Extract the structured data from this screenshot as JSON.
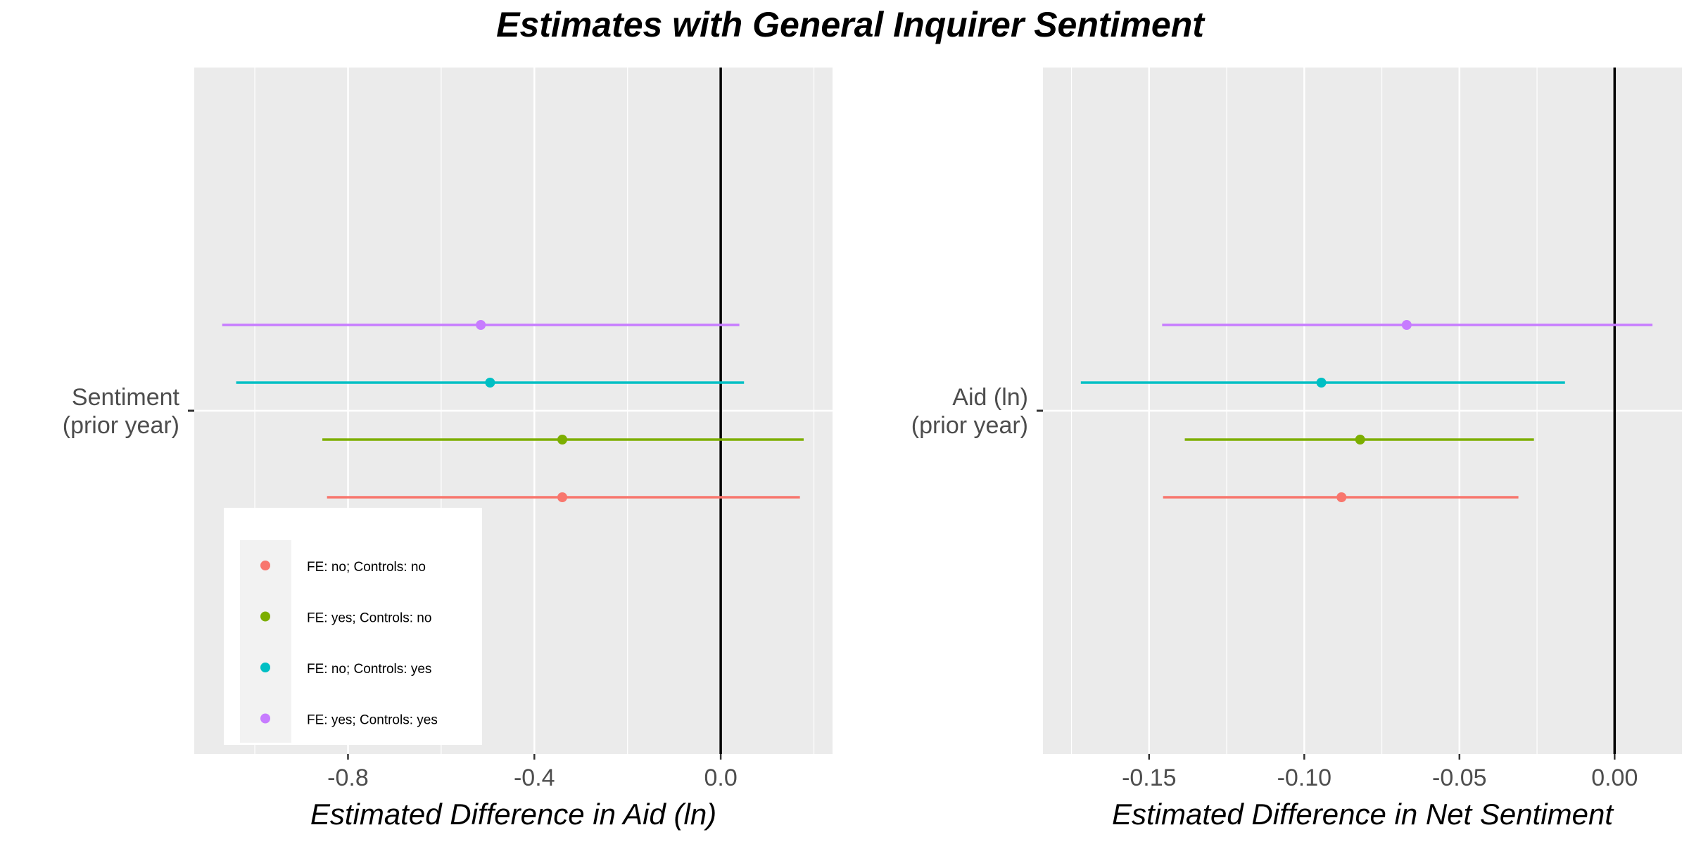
{
  "title": "Estimates with General Inquirer Sentiment",
  "colors": {
    "panel_bg": "#EBEBEB",
    "grid": "#FFFFFF",
    "zero_line": "#000000",
    "series": [
      "#F8766D",
      "#7CAE00",
      "#00BFC4",
      "#C77CFF"
    ]
  },
  "chart_data": [
    {
      "type": "scatter",
      "subtype": "coefficient-plot-with-intervals",
      "y_category": "Sentiment\n(prior year)",
      "xlabel": "Estimated Difference in Aid (ln)",
      "xlim": [
        -1.13,
        0.24
      ],
      "xticks": [
        -0.8,
        -0.4,
        0.0
      ],
      "xtick_labels": [
        "-0.8",
        "-0.4",
        "0.0"
      ],
      "x_grid_major": [
        -0.8,
        -0.4,
        0.0
      ],
      "x_grid_minor": [
        -1.0,
        -0.6,
        -0.2,
        0.2
      ],
      "zero_line": 0,
      "grid": true,
      "legend_position": "bottom-left",
      "series": [
        {
          "name": "FE: no; Controls: no",
          "estimate": -0.34,
          "lower": -0.845,
          "upper": 0.17
        },
        {
          "name": "FE: yes; Controls: no",
          "estimate": -0.34,
          "lower": -0.855,
          "upper": 0.178
        },
        {
          "name": "FE: no; Controls: yes",
          "estimate": -0.495,
          "lower": -1.04,
          "upper": 0.05
        },
        {
          "name": "FE: yes; Controls: yes",
          "estimate": -0.515,
          "lower": -1.07,
          "upper": 0.04
        }
      ]
    },
    {
      "type": "scatter",
      "subtype": "coefficient-plot-with-intervals",
      "y_category": "Aid (ln)\n(prior year)",
      "xlabel": "Estimated Difference in Net Sentiment",
      "xlim": [
        -0.1842,
        0.0217
      ],
      "xticks": [
        -0.15,
        -0.1,
        -0.05,
        0.0
      ],
      "xtick_labels": [
        "-0.15",
        "-0.10",
        "-0.05",
        "0.00"
      ],
      "x_grid_major": [
        -0.15,
        -0.1,
        -0.05,
        0.0
      ],
      "x_grid_minor": [
        -0.175,
        -0.125,
        -0.075,
        -0.025
      ],
      "zero_line": 0,
      "grid": true,
      "series": [
        {
          "name": "FE: no; Controls: no",
          "estimate": -0.088,
          "lower": -0.1455,
          "upper": -0.031
        },
        {
          "name": "FE: yes; Controls: no",
          "estimate": -0.082,
          "lower": -0.1385,
          "upper": -0.026
        },
        {
          "name": "FE: no; Controls: yes",
          "estimate": -0.0945,
          "lower": -0.172,
          "upper": -0.016
        },
        {
          "name": "FE: yes; Controls: yes",
          "estimate": -0.067,
          "lower": -0.1458,
          "upper": 0.0122
        }
      ]
    }
  ],
  "legend": {
    "position": "bottom-left",
    "items": [
      "FE: no; Controls: no",
      "FE: yes; Controls: no",
      "FE: no; Controls: yes",
      "FE: yes; Controls: yes"
    ]
  }
}
